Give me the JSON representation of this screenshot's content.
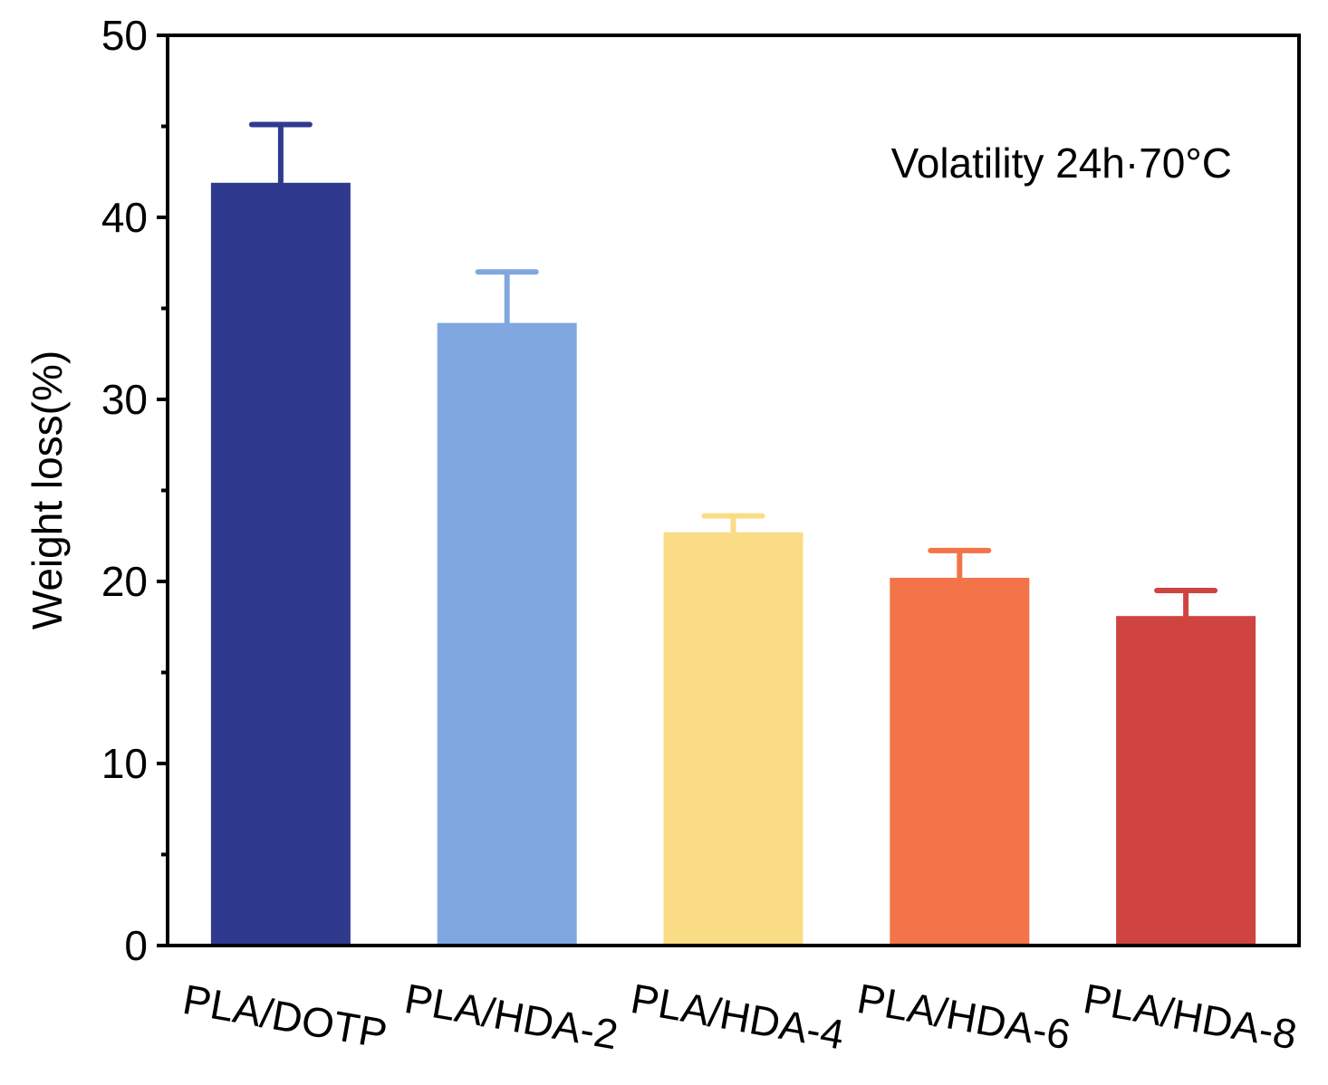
{
  "chart_data": {
    "type": "bar",
    "title": "",
    "annotation": "Volatility 24h·70°C",
    "xlabel": "",
    "ylabel": "Weight loss(%)",
    "ylim": [
      0,
      50
    ],
    "yticks": [
      0,
      10,
      20,
      30,
      40,
      50
    ],
    "yticks_minor": [
      5,
      15,
      25,
      35,
      45
    ],
    "grid": false,
    "categories": [
      "PLA/DOTP",
      "PLA/HDA-2",
      "PLA/HDA-4",
      "PLA/HDA-6",
      "PLA/HDA-8"
    ],
    "values": [
      41.9,
      34.2,
      22.7,
      20.2,
      18.1
    ],
    "errors": [
      3.2,
      2.8,
      0.9,
      1.5,
      1.4
    ],
    "colors": [
      "#2f3a8f",
      "#80a7e0",
      "#fadc86",
      "#f27448",
      "#cf4440"
    ]
  }
}
